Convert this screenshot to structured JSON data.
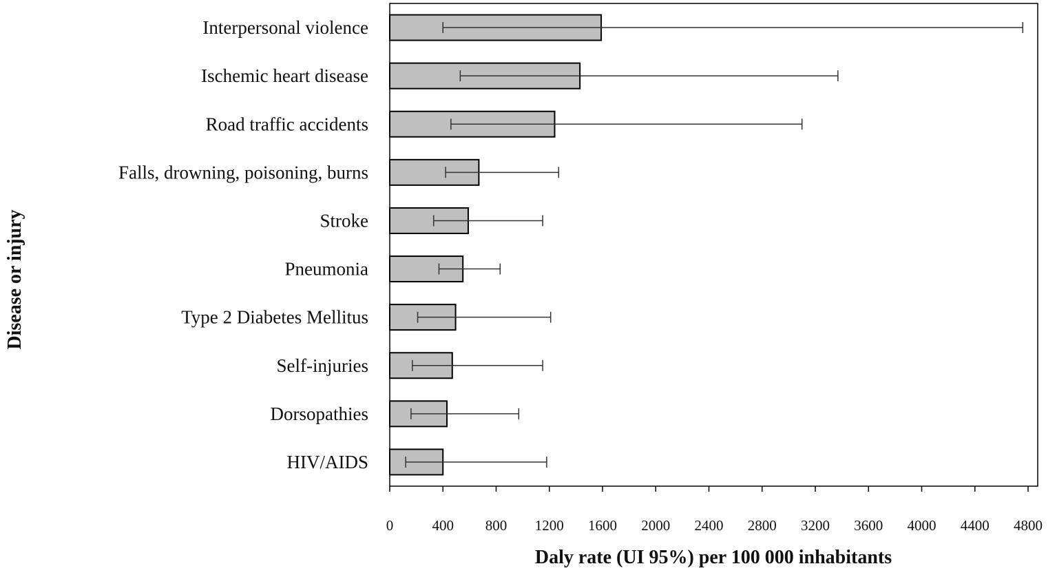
{
  "chart_data": {
    "type": "bar",
    "orientation": "horizontal",
    "title": "",
    "xlabel": "Daly rate (UI 95%) per 100 000 inhabitants",
    "ylabel": "Disease or injury",
    "xlim": [
      0,
      4800
    ],
    "xticks": [
      "0",
      "400",
      "800",
      "1200",
      "1600",
      "2000",
      "2400",
      "2800",
      "3200",
      "3600",
      "4000",
      "4400",
      "4800"
    ],
    "grid": false,
    "categories": [
      "Interpersonal  violence",
      "Ischemic heart disease",
      "Road traffic accidents",
      "Falls, drowning, poisoning, burns",
      "Stroke",
      "Pneumonia",
      "Type 2 Diabetes Mellitus",
      "Self-injuries",
      "Dorsopathies",
      "HIV/AIDS"
    ],
    "values": [
      1590,
      1430,
      1240,
      670,
      590,
      550,
      495,
      470,
      430,
      400
    ],
    "error_low": [
      400,
      530,
      460,
      420,
      330,
      370,
      210,
      170,
      160,
      120
    ],
    "error_high": [
      4760,
      3370,
      3100,
      1270,
      1150,
      830,
      1210,
      1150,
      970,
      1180
    ],
    "bar_color": "#bfbfbf",
    "bar_edge_color": "#000000"
  }
}
